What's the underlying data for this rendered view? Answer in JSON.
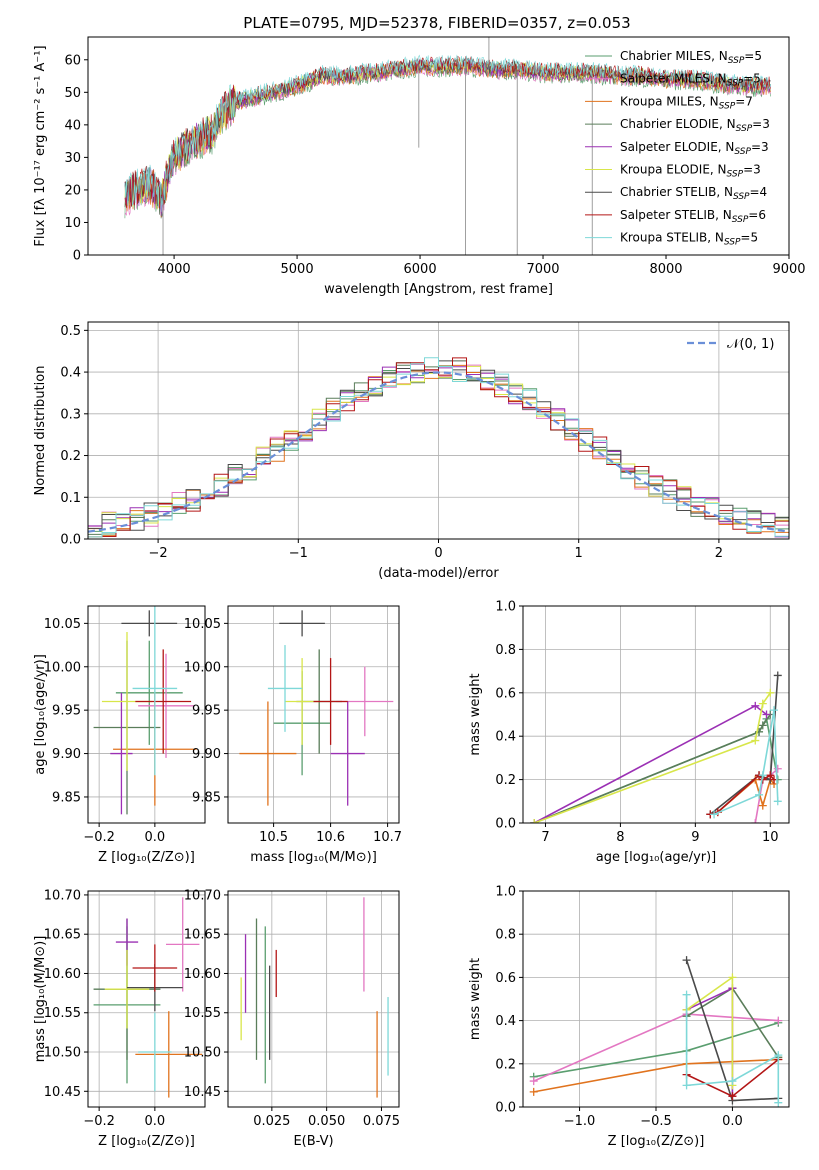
{
  "figure_title": "PLATE=0795, MJD=52378, FIBERID=0357, z=0.053",
  "models": [
    {
      "name": "Chabrier MILES",
      "n": "5",
      "color": "#5a9e6f"
    },
    {
      "name": "Salpeter MILES",
      "n": "5",
      "color": "#e377c2"
    },
    {
      "name": "Kroupa MILES",
      "n": "7",
      "color": "#e0731e"
    },
    {
      "name": "Chabrier ELODIE",
      "n": "3",
      "color": "#5a7d5a"
    },
    {
      "name": "Salpeter ELODIE",
      "n": "3",
      "color": "#9b30b4"
    },
    {
      "name": "Kroupa ELODIE",
      "n": "3",
      "color": "#d8e64a"
    },
    {
      "name": "Chabrier STELIB",
      "n": "4",
      "color": "#4a4a4a"
    },
    {
      "name": "Salpeter STELIB",
      "n": "6",
      "color": "#b31616"
    },
    {
      "name": "Kroupa STELIB",
      "n": "5",
      "color": "#7ed8d8"
    }
  ],
  "chart_data": [
    {
      "id": "spectrum",
      "type": "line",
      "xlabel": "wavelength [Angstrom, rest frame]",
      "ylabel": "Flux [fλ 10⁻¹⁷ erg cm⁻² s⁻¹ A⁻¹]",
      "xlim": [
        3300,
        9000
      ],
      "ylim": [
        0,
        67
      ],
      "xticks": [
        4000,
        5000,
        6000,
        7000,
        8000,
        9000
      ],
      "yticks": [
        0,
        10,
        20,
        30,
        40,
        50,
        60
      ],
      "continuum": {
        "x": [
          3600,
          3700,
          3800,
          3900,
          3950,
          4000,
          4100,
          4200,
          4300,
          4400,
          4500,
          4600,
          4800,
          5000,
          5200,
          5400,
          5600,
          5800,
          6000,
          6200,
          6400,
          6600,
          6800,
          7000,
          7200,
          7400,
          7600,
          7800,
          8000,
          8200,
          8400,
          8600,
          8800
        ],
        "y": [
          18,
          20,
          22,
          17,
          25,
          30,
          33,
          36,
          37,
          44,
          47,
          48,
          50,
          52,
          55,
          55,
          56,
          57,
          58,
          58,
          58,
          57,
          57,
          56,
          56,
          56,
          55,
          55,
          54,
          54,
          53,
          52,
          52
        ]
      },
      "spikes": [
        {
          "x": 3910,
          "y": 0
        },
        {
          "x": 5990,
          "y": 33
        },
        {
          "x": 6370,
          "y": 0
        },
        {
          "x": 6560,
          "y": 67
        },
        {
          "x": 6790,
          "y": 0
        },
        {
          "x": 7400,
          "y": 0
        }
      ]
    },
    {
      "id": "residuals",
      "type": "histogram",
      "xlabel": "(data-model)/error",
      "ylabel": "Normed distribution",
      "xlim": [
        -2.5,
        2.5
      ],
      "ylim": [
        0,
        0.52
      ],
      "xticks": [
        -2,
        -1,
        0,
        1,
        2
      ],
      "yticks": [
        0.0,
        0.1,
        0.2,
        0.3,
        0.4,
        0.5
      ],
      "legend": "𝒩(0, 1)",
      "bins": 50
    },
    {
      "id": "age_vs_Z",
      "type": "scatter",
      "xlabel": "Z [log₁₀(Z/Z⊙)]",
      "ylabel": "age  [log₁₀(age/yr)]",
      "xlim": [
        -0.24,
        0.18
      ],
      "ylim": [
        9.82,
        10.07
      ],
      "xticks": [
        -0.2,
        0.0
      ],
      "yticks": [
        9.85,
        9.9,
        9.95,
        10.0,
        10.05
      ],
      "points": [
        {
          "x": -0.02,
          "y": 9.97,
          "xerr": 0.12,
          "yerr": 0.06
        },
        {
          "x": 0.04,
          "y": 9.955,
          "xerr": 0.1,
          "yerr": 0.06
        },
        {
          "x": 0.0,
          "y": 9.905,
          "xerr": 0.15,
          "yerr": 0.065
        },
        {
          "x": -0.1,
          "y": 9.93,
          "xerr": 0.12,
          "yerr": 0.1
        },
        {
          "x": -0.12,
          "y": 9.9,
          "xerr": 0.04,
          "yerr": 0.07
        },
        {
          "x": -0.1,
          "y": 9.96,
          "xerr": 0.09,
          "yerr": 0.08
        },
        {
          "x": -0.02,
          "y": 10.05,
          "xerr": 0.1,
          "yerr": 0.015
        },
        {
          "x": 0.03,
          "y": 9.96,
          "xerr": 0.1,
          "yerr": 0.06
        },
        {
          "x": 0.0,
          "y": 9.975,
          "xerr": 0.08,
          "yerr": 0.1
        }
      ]
    },
    {
      "id": "age_vs_mass",
      "type": "scatter",
      "xlabel": "mass [log₁₀(M/M⊙)]",
      "ylabel": "",
      "xlim": [
        10.42,
        10.72
      ],
      "ylim": [
        9.82,
        10.07
      ],
      "xticks": [
        10.5,
        10.6,
        10.7
      ],
      "yticks": [
        9.85,
        9.9,
        9.95,
        10.0,
        10.05
      ],
      "points": [
        {
          "x": 10.55,
          "y": 9.935,
          "xerr": 0.05,
          "yerr": 0.06
        },
        {
          "x": 10.66,
          "y": 9.96,
          "xerr": 0.05,
          "yerr": 0.04
        },
        {
          "x": 10.49,
          "y": 9.9,
          "xerr": 0.05,
          "yerr": 0.06
        },
        {
          "x": 10.58,
          "y": 9.96,
          "xerr": 0.04,
          "yerr": 0.06
        },
        {
          "x": 10.63,
          "y": 9.9,
          "xerr": 0.03,
          "yerr": 0.06
        },
        {
          "x": 10.55,
          "y": 9.96,
          "xerr": 0.03,
          "yerr": 0.05
        },
        {
          "x": 10.55,
          "y": 10.05,
          "xerr": 0.04,
          "yerr": 0.015
        },
        {
          "x": 10.6,
          "y": 9.96,
          "xerr": 0.03,
          "yerr": 0.05
        },
        {
          "x": 10.52,
          "y": 9.975,
          "xerr": 0.03,
          "yerr": 0.05
        }
      ]
    },
    {
      "id": "weight_vs_age",
      "type": "line",
      "xlabel": "age  [log₁₀(age/yr)]",
      "ylabel": "mass weight",
      "xlim": [
        6.7,
        10.25
      ],
      "ylim": [
        0,
        1.0
      ],
      "xticks": [
        7,
        8,
        9,
        10
      ],
      "yticks": [
        0.0,
        0.2,
        0.4,
        0.6,
        0.8,
        1.0
      ],
      "series": [
        {
          "x": [
            6.85,
            9.85,
            9.95,
            10.1
          ],
          "y": [
            0.0,
            0.42,
            0.48,
            0.2
          ]
        },
        {
          "x": [
            9.8,
            9.9,
            10.0,
            10.1
          ],
          "y": [
            0.0,
            0.2,
            0.22,
            0.25
          ]
        },
        {
          "x": [
            9.3,
            9.8,
            9.9,
            10.0,
            10.05
          ],
          "y": [
            0.05,
            0.2,
            0.08,
            0.2,
            0.18
          ]
        },
        {
          "x": [
            6.85,
            9.85,
            9.9,
            10.0
          ],
          "y": [
            0.0,
            0.42,
            0.45,
            0.5
          ]
        },
        {
          "x": [
            6.85,
            9.8,
            9.95
          ],
          "y": [
            0.0,
            0.54,
            0.5
          ]
        },
        {
          "x": [
            6.85,
            9.8,
            9.9,
            10.0
          ],
          "y": [
            0.0,
            0.38,
            0.55,
            0.6
          ]
        },
        {
          "x": [
            9.2,
            9.85,
            10.0,
            10.1
          ],
          "y": [
            0.04,
            0.22,
            0.2,
            0.68
          ]
        },
        {
          "x": [
            9.2,
            9.3,
            9.85,
            9.9,
            10.0,
            10.05
          ],
          "y": [
            0.04,
            0.05,
            0.22,
            0.2,
            0.22,
            0.2
          ]
        },
        {
          "x": [
            9.25,
            9.85,
            9.9,
            10.05,
            10.1
          ],
          "y": [
            0.04,
            0.13,
            0.22,
            0.52,
            0.1
          ]
        }
      ]
    },
    {
      "id": "mass_vs_Z",
      "type": "scatter",
      "xlabel": "Z [log₁₀(Z/Z⊙)]",
      "ylabel": "mass [log₁₀(M/M⊙)]",
      "xlim": [
        -0.24,
        0.18
      ],
      "ylim": [
        10.43,
        10.705
      ],
      "xticks": [
        -0.2,
        0.0
      ],
      "yticks": [
        10.45,
        10.5,
        10.55,
        10.6,
        10.65,
        10.7
      ],
      "points": [
        {
          "x": -0.1,
          "y": 10.56,
          "xerr": 0.12,
          "yerr": 0.1
        },
        {
          "x": 0.1,
          "y": 10.637,
          "xerr": 0.06,
          "yerr": 0.06
        },
        {
          "x": 0.05,
          "y": 10.497,
          "xerr": 0.12,
          "yerr": 0.055
        },
        {
          "x": -0.1,
          "y": 10.58,
          "xerr": 0.12,
          "yerr": 0.09
        },
        {
          "x": -0.1,
          "y": 10.64,
          "xerr": 0.04,
          "yerr": 0.03
        },
        {
          "x": -0.1,
          "y": 10.58,
          "xerr": 0.08,
          "yerr": 0.05
        },
        {
          "x": 0.0,
          "y": 10.582,
          "xerr": 0.1,
          "yerr": 0.03
        },
        {
          "x": 0.0,
          "y": 10.607,
          "xerr": 0.08,
          "yerr": 0.03
        },
        {
          "x": 0.0,
          "y": 10.5,
          "xerr": 0.06,
          "yerr": 0.05
        }
      ]
    },
    {
      "id": "mass_vs_ebv",
      "type": "scatter",
      "xlabel": "E(B-V)",
      "ylabel": "",
      "xlim": [
        0.005,
        0.083
      ],
      "ylim": [
        10.43,
        10.705
      ],
      "xticks": [
        0.025,
        0.05,
        0.075
      ],
      "xticklabels": [
        "0.025",
        "0.050",
        "0.075"
      ],
      "yticks": [
        10.45,
        10.5,
        10.55,
        10.6,
        10.65,
        10.7
      ],
      "points": [
        {
          "x": 0.022,
          "y": 10.56,
          "yerr": 0.1
        },
        {
          "x": 0.067,
          "y": 10.637,
          "yerr": 0.06
        },
        {
          "x": 0.073,
          "y": 10.497,
          "yerr": 0.055
        },
        {
          "x": 0.018,
          "y": 10.58,
          "yerr": 0.09
        },
        {
          "x": 0.013,
          "y": 10.6,
          "yerr": 0.05
        },
        {
          "x": 0.011,
          "y": 10.555,
          "yerr": 0.04
        },
        {
          "x": 0.024,
          "y": 10.55,
          "yerr": 0.06
        },
        {
          "x": 0.027,
          "y": 10.6,
          "yerr": 0.03
        },
        {
          "x": 0.078,
          "y": 10.52,
          "yerr": 0.05
        }
      ]
    },
    {
      "id": "weight_vs_Z",
      "type": "line",
      "xlabel": "Z [log₁₀(Z/Z⊙)]",
      "ylabel": "mass weight",
      "xlim": [
        -1.37,
        0.37
      ],
      "ylim": [
        0,
        1.0
      ],
      "xticks": [
        -1.0,
        -0.5,
        0.0
      ],
      "yticks": [
        0.0,
        0.2,
        0.4,
        0.6,
        0.8,
        1.0
      ],
      "series": [
        {
          "x": [
            -1.3,
            -0.3,
            0.3
          ],
          "y": [
            0.14,
            0.26,
            0.39
          ]
        },
        {
          "x": [
            -1.3,
            -0.3,
            0.3
          ],
          "y": [
            0.12,
            0.43,
            0.4
          ]
        },
        {
          "x": [
            -1.3,
            -0.3,
            0.3
          ],
          "y": [
            0.07,
            0.2,
            0.22
          ]
        },
        {
          "x": [
            -0.3,
            0.0,
            0.3
          ],
          "y": [
            0.42,
            0.55,
            0.23
          ]
        },
        {
          "x": [
            -0.3,
            0.0,
            0.0
          ],
          "y": [
            0.45,
            0.55,
            0.05
          ]
        },
        {
          "x": [
            -0.3,
            0.0,
            0.0
          ],
          "y": [
            0.45,
            0.6,
            0.1
          ]
        },
        {
          "x": [
            -0.3,
            0.0,
            0.3
          ],
          "y": [
            0.68,
            0.03,
            0.04
          ]
        },
        {
          "x": [
            -0.3,
            0.0,
            0.3
          ],
          "y": [
            0.15,
            0.05,
            0.22
          ]
        },
        {
          "x": [
            -0.3,
            -0.3,
            0.0,
            0.3,
            0.3
          ],
          "y": [
            0.52,
            0.1,
            0.12,
            0.24,
            0.02
          ]
        }
      ]
    }
  ]
}
